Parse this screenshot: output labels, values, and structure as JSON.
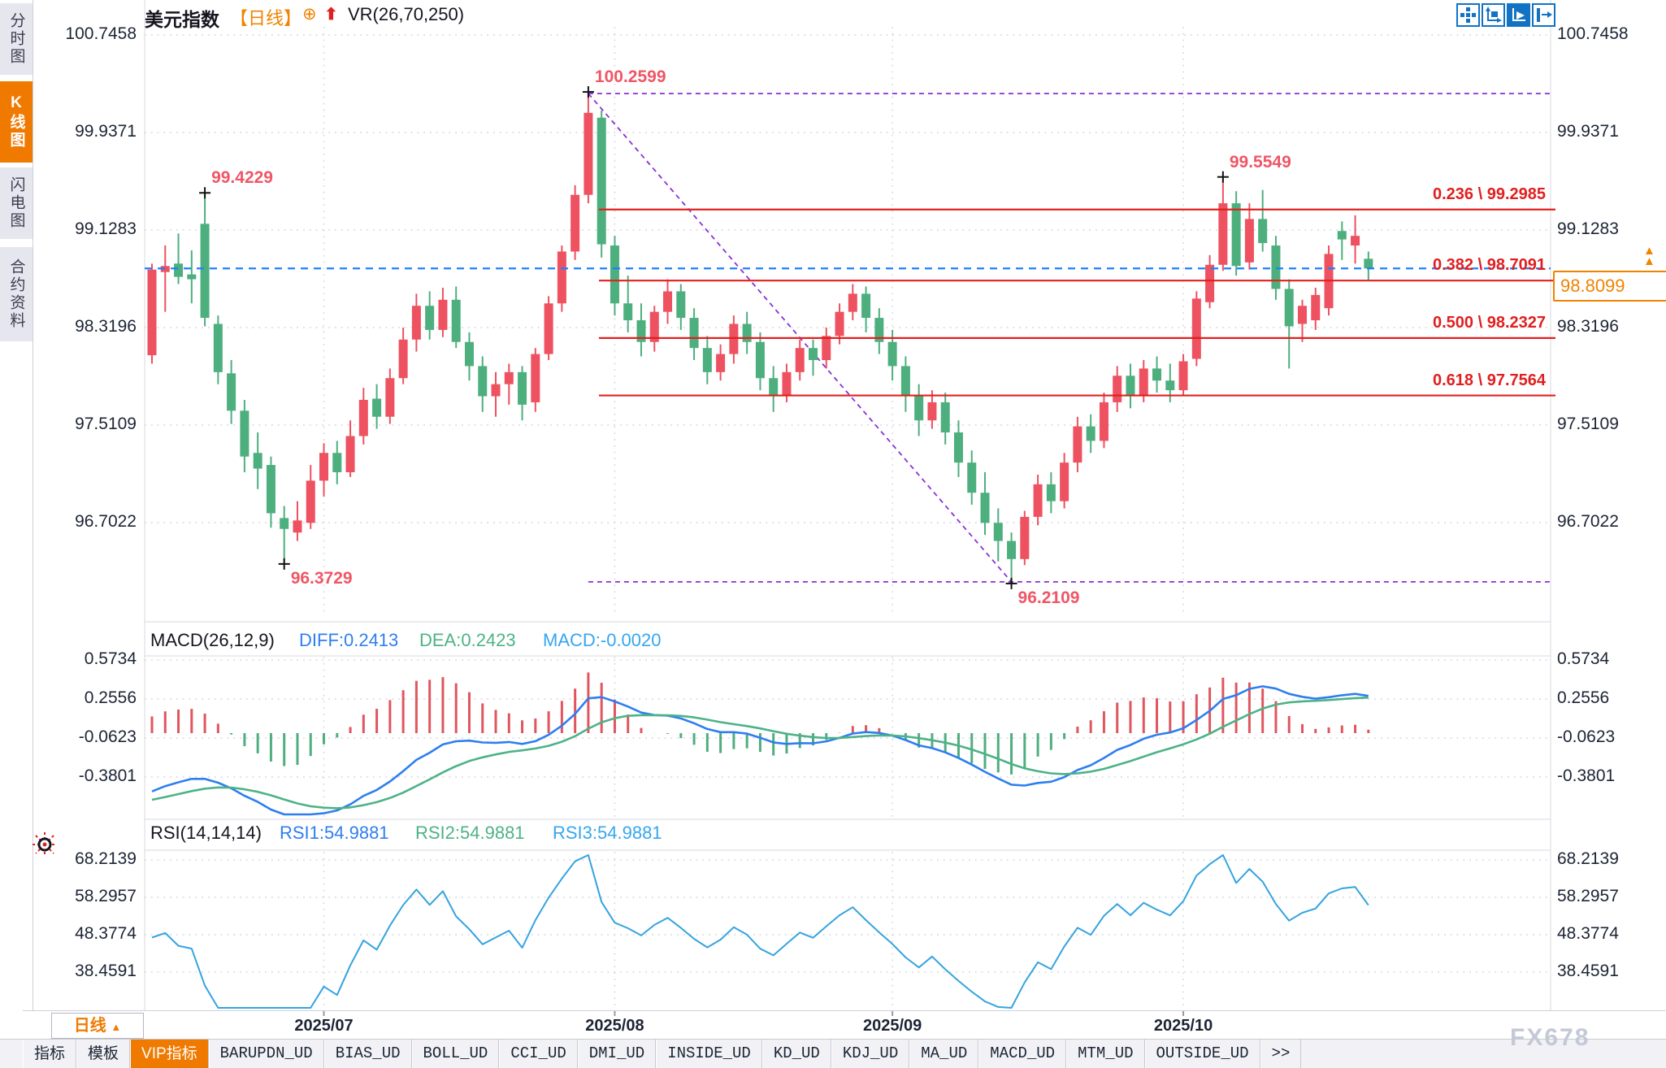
{
  "sidebar": {
    "items": [
      {
        "label": "分时图",
        "active": false
      },
      {
        "label": "K线图",
        "active": true
      },
      {
        "label": "闪电图",
        "active": false
      },
      {
        "label": "合约资料",
        "active": false
      }
    ]
  },
  "header": {
    "symbol": "美元指数",
    "period_tag": "【日线】",
    "add_icon": "⊕",
    "arrow_icon": "⬆",
    "indicator": "VR(26,70,250)"
  },
  "toolbar": {
    "icons": [
      "pan-icon",
      "axis-fit-icon",
      "axis-track-icon",
      "exit-right-icon"
    ]
  },
  "current_price": "98.8099",
  "period_selector": {
    "label": "日线",
    "arrow": "▲"
  },
  "watermark": "FX678",
  "colors": {
    "up": "#ee5160",
    "down": "#4daf7e",
    "accent": "#f07a00",
    "fib": "#e02020",
    "trend": "#8b2fd6",
    "current_line": "#1e80ff",
    "diff_line": "#2e7ef0",
    "dea_line": "#4db287",
    "macd_text": "#35a6f0",
    "grid": "#d4d4de",
    "axis_text": "#1c2434"
  },
  "chart_data": {
    "type": "candlestick",
    "title": "美元指数 日线",
    "y_ticks": [
      100.7458,
      99.9371,
      99.1283,
      98.3196,
      97.5109,
      96.7022
    ],
    "x_labels": [
      {
        "label": "2025/07",
        "index": 13
      },
      {
        "label": "2025/08",
        "index": 35
      },
      {
        "label": "2025/09",
        "index": 56
      },
      {
        "label": "2025/10",
        "index": 78
      }
    ],
    "current_price": 98.8099,
    "fib": [
      {
        "label": "0.236 \\ 99.2985",
        "price": 99.2985
      },
      {
        "label": "0.382 \\ 98.7091",
        "price": 98.7091
      },
      {
        "label": "0.500 \\ 98.2327",
        "price": 98.2327
      },
      {
        "label": "0.618 \\ 97.7564",
        "price": 97.7564
      }
    ],
    "trend_line": {
      "from_index": 33,
      "from_price": 100.2599,
      "to_index": 65,
      "to_price": 96.2109
    },
    "annotations": [
      {
        "index": 4,
        "price": 99.4229,
        "text": "99.4229",
        "side": "high"
      },
      {
        "index": 10,
        "price": 96.3729,
        "text": "96.3729",
        "side": "low"
      },
      {
        "index": 33,
        "price": 100.2599,
        "text": "100.2599",
        "side": "high"
      },
      {
        "index": 65,
        "price": 96.2109,
        "text": "96.2109",
        "side": "low"
      },
      {
        "index": 81,
        "price": 99.5549,
        "text": "99.5549",
        "side": "high"
      }
    ],
    "candles": [
      [
        98.09,
        98.85,
        98.02,
        98.8
      ],
      [
        98.78,
        99.0,
        98.45,
        98.83
      ],
      [
        98.85,
        99.1,
        98.68,
        98.74
      ],
      [
        98.76,
        98.96,
        98.52,
        98.72
      ],
      [
        99.18,
        99.4229,
        98.33,
        98.4
      ],
      [
        98.35,
        98.42,
        97.85,
        97.95
      ],
      [
        97.94,
        98.05,
        97.52,
        97.63
      ],
      [
        97.63,
        97.72,
        97.12,
        97.25
      ],
      [
        97.28,
        97.45,
        96.98,
        97.15
      ],
      [
        97.18,
        97.25,
        96.66,
        96.78
      ],
      [
        96.74,
        96.84,
        96.3729,
        96.65
      ],
      [
        96.62,
        96.88,
        96.55,
        96.72
      ],
      [
        96.7,
        97.18,
        96.65,
        97.05
      ],
      [
        97.05,
        97.36,
        96.92,
        97.28
      ],
      [
        97.28,
        97.38,
        97.02,
        97.12
      ],
      [
        97.12,
        97.55,
        97.08,
        97.42
      ],
      [
        97.42,
        97.82,
        97.35,
        97.72
      ],
      [
        97.73,
        97.85,
        97.48,
        97.58
      ],
      [
        97.58,
        97.98,
        97.52,
        97.9
      ],
      [
        97.9,
        98.32,
        97.85,
        98.22
      ],
      [
        98.22,
        98.6,
        98.12,
        98.5
      ],
      [
        98.5,
        98.62,
        98.22,
        98.3
      ],
      [
        98.3,
        98.65,
        98.24,
        98.55
      ],
      [
        98.55,
        98.66,
        98.15,
        98.2
      ],
      [
        98.2,
        98.28,
        97.88,
        98.0
      ],
      [
        98.0,
        98.08,
        97.62,
        97.75
      ],
      [
        97.75,
        97.95,
        97.58,
        97.85
      ],
      [
        97.85,
        98.02,
        97.68,
        97.95
      ],
      [
        97.95,
        98.0,
        97.55,
        97.68
      ],
      [
        97.7,
        98.15,
        97.62,
        98.1
      ],
      [
        98.1,
        98.58,
        98.05,
        98.52
      ],
      [
        98.52,
        99.0,
        98.45,
        98.95
      ],
      [
        98.95,
        99.5,
        98.88,
        99.42
      ],
      [
        99.42,
        100.2599,
        99.35,
        100.1
      ],
      [
        100.06,
        100.12,
        98.9,
        99.01
      ],
      [
        99.0,
        99.08,
        98.42,
        98.52
      ],
      [
        98.52,
        98.75,
        98.28,
        98.38
      ],
      [
        98.38,
        98.52,
        98.08,
        98.2
      ],
      [
        98.2,
        98.5,
        98.12,
        98.45
      ],
      [
        98.45,
        98.72,
        98.35,
        98.62
      ],
      [
        98.62,
        98.68,
        98.3,
        98.4
      ],
      [
        98.4,
        98.48,
        98.05,
        98.15
      ],
      [
        98.15,
        98.25,
        97.85,
        97.95
      ],
      [
        97.95,
        98.18,
        97.88,
        98.1
      ],
      [
        98.1,
        98.42,
        98.02,
        98.35
      ],
      [
        98.35,
        98.45,
        98.1,
        98.2
      ],
      [
        98.2,
        98.28,
        97.8,
        97.9
      ],
      [
        97.9,
        98.0,
        97.62,
        97.75
      ],
      [
        97.75,
        98.02,
        97.7,
        97.95
      ],
      [
        97.95,
        98.22,
        97.88,
        98.15
      ],
      [
        98.15,
        98.22,
        97.92,
        98.05
      ],
      [
        98.05,
        98.32,
        97.98,
        98.25
      ],
      [
        98.25,
        98.52,
        98.18,
        98.45
      ],
      [
        98.45,
        98.68,
        98.38,
        98.6
      ],
      [
        98.6,
        98.66,
        98.28,
        98.4
      ],
      [
        98.4,
        98.48,
        98.1,
        98.2
      ],
      [
        98.2,
        98.3,
        97.88,
        98.0
      ],
      [
        98.0,
        98.08,
        97.62,
        97.75
      ],
      [
        97.75,
        97.85,
        97.42,
        97.55
      ],
      [
        97.55,
        97.8,
        97.48,
        97.7
      ],
      [
        97.7,
        97.78,
        97.35,
        97.45
      ],
      [
        97.45,
        97.55,
        97.08,
        97.2
      ],
      [
        97.2,
        97.3,
        96.85,
        96.95
      ],
      [
        96.95,
        97.12,
        96.6,
        96.7
      ],
      [
        96.7,
        96.82,
        96.38,
        96.55
      ],
      [
        96.55,
        96.62,
        96.2109,
        96.4
      ],
      [
        96.4,
        96.8,
        96.35,
        96.75
      ],
      [
        96.75,
        97.1,
        96.68,
        97.02
      ],
      [
        97.02,
        97.12,
        96.78,
        96.88
      ],
      [
        96.88,
        97.28,
        96.82,
        97.2
      ],
      [
        97.2,
        97.58,
        97.12,
        97.5
      ],
      [
        97.5,
        97.6,
        97.28,
        97.38
      ],
      [
        97.38,
        97.78,
        97.32,
        97.7
      ],
      [
        97.7,
        98.0,
        97.62,
        97.92
      ],
      [
        97.92,
        98.02,
        97.65,
        97.75
      ],
      [
        97.75,
        98.05,
        97.7,
        97.98
      ],
      [
        97.98,
        98.08,
        97.78,
        97.88
      ],
      [
        97.88,
        98.02,
        97.7,
        97.8
      ],
      [
        97.8,
        98.1,
        97.75,
        98.04
      ],
      [
        98.06,
        98.62,
        98.0,
        98.56
      ],
      [
        98.53,
        98.92,
        98.48,
        98.84
      ],
      [
        98.84,
        99.5549,
        98.79,
        99.35
      ],
      [
        99.35,
        99.45,
        98.75,
        98.83
      ],
      [
        98.86,
        99.35,
        98.8,
        99.22
      ],
      [
        99.22,
        99.46,
        98.95,
        99.02
      ],
      [
        99.0,
        99.08,
        98.55,
        98.64
      ],
      [
        98.64,
        98.72,
        97.98,
        98.33
      ],
      [
        98.35,
        98.55,
        98.2,
        98.5
      ],
      [
        98.38,
        98.65,
        98.3,
        98.59
      ],
      [
        98.48,
        99.0,
        98.42,
        98.93
      ],
      [
        99.12,
        99.2,
        98.88,
        99.05
      ],
      [
        99.0,
        99.25,
        98.85,
        99.08
      ],
      [
        98.89,
        98.95,
        98.71,
        98.8099
      ]
    ],
    "macd": {
      "params": "MACD(26,12,9)",
      "diff_label": "DIFF:0.2413",
      "dea_label": "DEA:0.2423",
      "macd_label": "MACD:-0.0020",
      "y_ticks": [
        0.5734,
        0.2556,
        -0.0623,
        -0.3801
      ]
    },
    "rsi": {
      "params": "RSI(14,14,14)",
      "rsi1_label": "RSI1:54.9881",
      "rsi2_label": "RSI2:54.9881",
      "rsi3_label": "RSI3:54.9881",
      "y_ticks": [
        68.2139,
        58.2957,
        48.3774,
        38.4591
      ]
    }
  },
  "tabs": [
    {
      "label": "指标",
      "cn": true,
      "active": false
    },
    {
      "label": "模板",
      "cn": true,
      "active": false
    },
    {
      "label": "VIP指标",
      "cn": true,
      "active": true
    },
    {
      "label": "BARUPDN_UD",
      "cn": false,
      "active": false
    },
    {
      "label": "BIAS_UD",
      "cn": false,
      "active": false
    },
    {
      "label": "BOLL_UD",
      "cn": false,
      "active": false
    },
    {
      "label": "CCI_UD",
      "cn": false,
      "active": false
    },
    {
      "label": "DMI_UD",
      "cn": false,
      "active": false
    },
    {
      "label": "INSIDE_UD",
      "cn": false,
      "active": false
    },
    {
      "label": "KD_UD",
      "cn": false,
      "active": false
    },
    {
      "label": "KDJ_UD",
      "cn": false,
      "active": false
    },
    {
      "label": "MA_UD",
      "cn": false,
      "active": false
    },
    {
      "label": "MACD_UD",
      "cn": false,
      "active": false
    },
    {
      "label": "MTM_UD",
      "cn": false,
      "active": false
    },
    {
      "label": "OUTSIDE_UD",
      "cn": false,
      "active": false
    },
    {
      "label": ">>",
      "cn": false,
      "active": false
    }
  ]
}
